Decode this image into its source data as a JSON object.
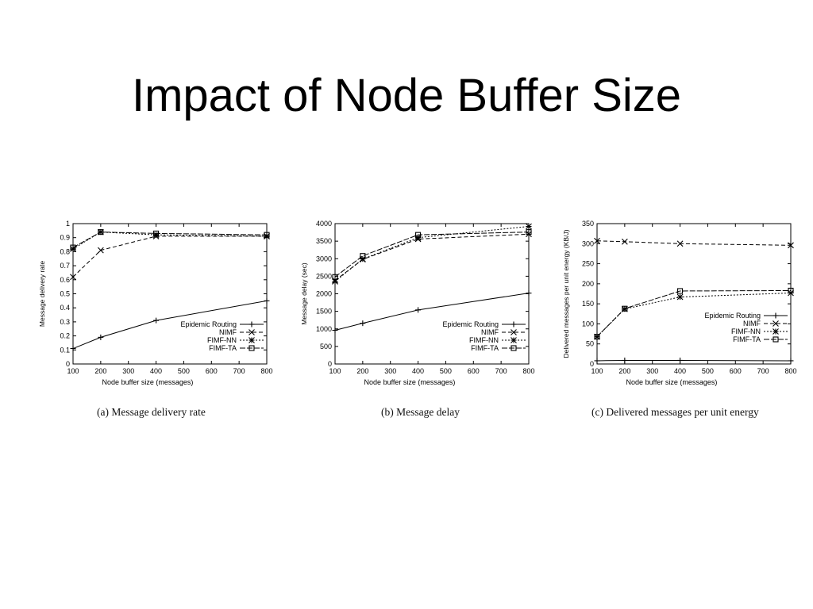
{
  "slide": {
    "title": "Impact of Node Buffer Size"
  },
  "legend_labels": [
    "Epidemic Routing",
    "NIMF",
    "FIMF-NN",
    "FIMF-TA"
  ],
  "chart_data": [
    {
      "type": "line",
      "caption": "(a) Message delivery rate",
      "xlabel": "Node buffer size (messages)",
      "ylabel": "Message delivery rate",
      "xlim": [
        100,
        800
      ],
      "ylim": [
        0,
        1
      ],
      "xticks": [
        100,
        200,
        300,
        400,
        500,
        600,
        700,
        800
      ],
      "yticks": [
        0,
        0.1,
        0.2,
        0.3,
        0.4,
        0.5,
        0.6,
        0.7,
        0.8,
        0.9,
        1
      ],
      "legend_position": "lower-right",
      "x": [
        100,
        200,
        400,
        800
      ],
      "series": [
        {
          "name": "Epidemic Routing",
          "marker": "plus",
          "values": [
            0.11,
            0.19,
            0.31,
            0.45
          ]
        },
        {
          "name": "NIMF",
          "marker": "x",
          "values": [
            0.62,
            0.81,
            0.91,
            0.91
          ]
        },
        {
          "name": "FIMF-NN",
          "marker": "star",
          "values": [
            0.82,
            0.94,
            0.92,
            0.91
          ]
        },
        {
          "name": "FIMF-TA",
          "marker": "square",
          "values": [
            0.83,
            0.94,
            0.93,
            0.92
          ]
        }
      ]
    },
    {
      "type": "line",
      "caption": "(b) Message delay",
      "xlabel": "Node buffer size (messages)",
      "ylabel": "Message delay (sec)",
      "xlim": [
        100,
        800
      ],
      "ylim": [
        0,
        4000
      ],
      "xticks": [
        100,
        200,
        300,
        400,
        500,
        600,
        700,
        800
      ],
      "yticks": [
        0,
        500,
        1000,
        1500,
        2000,
        2500,
        3000,
        3500,
        4000
      ],
      "legend_position": "lower-right",
      "x": [
        100,
        200,
        400,
        800
      ],
      "series": [
        {
          "name": "Epidemic Routing",
          "marker": "plus",
          "values": [
            960,
            1160,
            1540,
            2020
          ]
        },
        {
          "name": "NIMF",
          "marker": "x",
          "values": [
            2380,
            2980,
            3560,
            3700
          ]
        },
        {
          "name": "FIMF-NN",
          "marker": "star",
          "values": [
            2350,
            2990,
            3600,
            3920
          ]
        },
        {
          "name": "FIMF-TA",
          "marker": "square",
          "values": [
            2480,
            3080,
            3680,
            3760
          ]
        }
      ]
    },
    {
      "type": "line",
      "caption": "(c) Delivered messages per unit energy",
      "xlabel": "Node buffer size (messages)",
      "ylabel": "Delivered messages per unit energy (KB/J)",
      "xlim": [
        100,
        800
      ],
      "ylim": [
        0,
        350
      ],
      "xticks": [
        100,
        200,
        300,
        400,
        500,
        600,
        700,
        800
      ],
      "yticks": [
        0,
        50,
        100,
        150,
        200,
        250,
        300,
        350
      ],
      "legend_position": "center-right",
      "x": [
        100,
        200,
        400,
        800
      ],
      "series": [
        {
          "name": "Epidemic Routing",
          "marker": "plus",
          "values": [
            8,
            9,
            9,
            8
          ]
        },
        {
          "name": "NIMF",
          "marker": "x",
          "values": [
            307,
            305,
            300,
            296
          ]
        },
        {
          "name": "FIMF-NN",
          "marker": "star",
          "values": [
            68,
            137,
            167,
            177
          ]
        },
        {
          "name": "FIMF-TA",
          "marker": "square",
          "values": [
            68,
            138,
            182,
            183
          ]
        }
      ]
    }
  ]
}
